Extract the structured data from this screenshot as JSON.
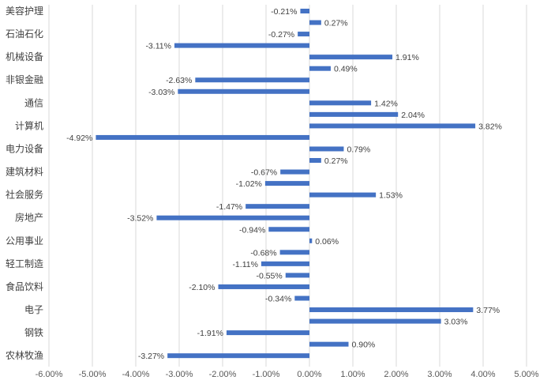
{
  "chart_data": {
    "type": "bar",
    "orientation": "horizontal",
    "bar_color": "#4472C4",
    "gridline_color": "#D9D9D9",
    "axis": {
      "xlim": [
        -6,
        5
      ],
      "major_step": 1,
      "tick_labels": [
        "-6.00%",
        "-5.00%",
        "-4.00%",
        "-3.00%",
        "-2.00%",
        "-1.00%",
        "0.00%",
        "1.00%",
        "2.00%",
        "3.00%",
        "4.00%",
        "5.00%"
      ]
    },
    "category_labels": [
      "美容护理",
      "石油石化",
      "机械设备",
      "非银金融",
      "通信",
      "计算机",
      "电力设备",
      "建筑材料",
      "社会服务",
      "房地产",
      "公用事业",
      "轻工制造",
      "食品饮料",
      "电子",
      "钢铁",
      "农林牧渔"
    ],
    "values": [
      -0.21,
      0.27,
      -0.27,
      -3.11,
      1.91,
      0.49,
      -2.63,
      -3.03,
      1.42,
      2.04,
      3.82,
      -4.92,
      0.79,
      0.27,
      -0.67,
      -1.02,
      1.53,
      -1.47,
      -3.52,
      -0.94,
      0.06,
      -0.68,
      -1.11,
      -0.55,
      -2.1,
      -0.34,
      3.77,
      3.03,
      -1.91,
      0.9,
      -3.27
    ],
    "data_labels": [
      "-0.21%",
      "0.27%",
      "-0.27%",
      "-3.11%",
      "1.91%",
      "0.49%",
      "-2.63%",
      "-3.03%",
      "1.42%",
      "2.04%",
      "3.82%",
      "-4.92%",
      "0.79%",
      "0.27%",
      "-0.67%",
      "-1.02%",
      "1.53%",
      "-1.47%",
      "-3.52%",
      "-0.94%",
      "0.06%",
      "-0.68%",
      "-1.11%",
      "-0.55%",
      "-2.10%",
      "-0.34%",
      "3.77%",
      "3.03%",
      "-1.91%",
      "0.90%",
      "-3.27%"
    ],
    "grid": true,
    "legend": "none"
  }
}
